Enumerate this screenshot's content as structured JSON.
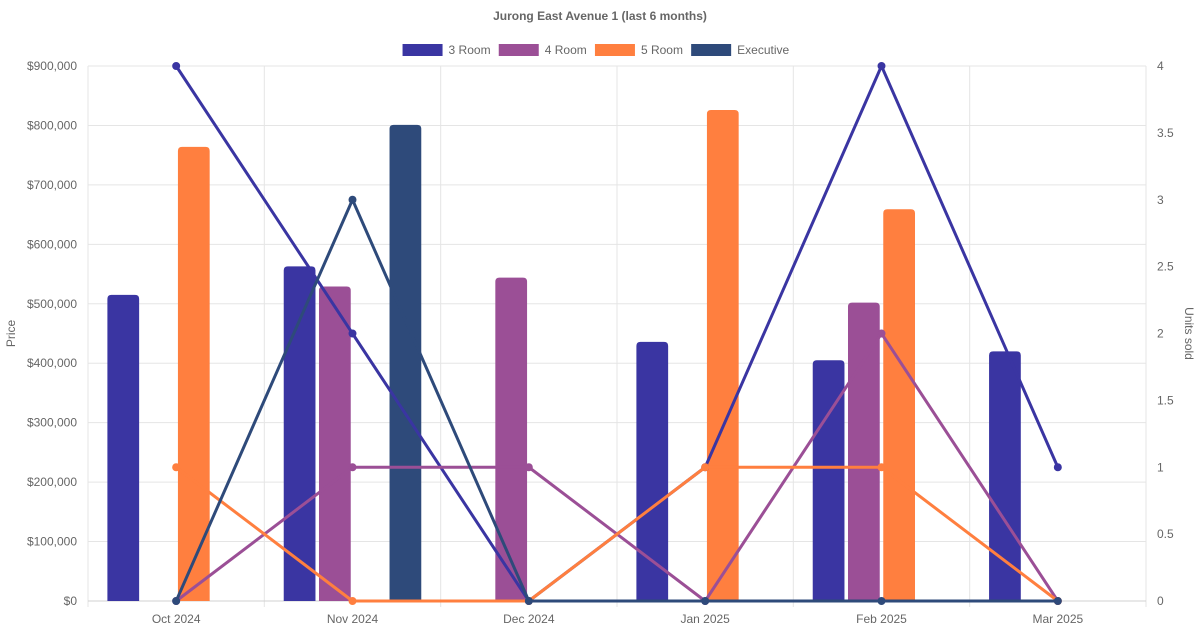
{
  "chart_data": {
    "type": "bar",
    "title": "Jurong East Avenue 1 (last 6 months)",
    "categories": [
      "Oct 2024",
      "Nov 2024",
      "Dec 2024",
      "Jan 2025",
      "Feb 2025",
      "Mar 2025"
    ],
    "ylabel": "Price",
    "y2label": "Units sold",
    "ylim": [
      0,
      900000
    ],
    "y2lim": [
      0,
      4
    ],
    "y_ticks": [
      "$0",
      "$100,000",
      "$200,000",
      "$300,000",
      "$400,000",
      "$500,000",
      "$600,000",
      "$700,000",
      "$800,000",
      "$900,000"
    ],
    "y2_ticks": [
      "0",
      "0.5",
      "1",
      "1.5",
      "2",
      "2.5",
      "3",
      "3.5",
      "4"
    ],
    "grid": true,
    "legend_position": "top",
    "legend": [
      "3 Room",
      "4 Room",
      "5 Room",
      "Executive"
    ],
    "colors": {
      "3 Room": "#3a35a2",
      "4 Room": "#9b4f96",
      "5 Room": "#ff7f3f",
      "Executive": "#2e4a7a"
    },
    "price_series": [
      {
        "name": "3 Room",
        "values": [
          515000,
          563000,
          null,
          436000,
          405000,
          420000
        ]
      },
      {
        "name": "4 Room",
        "values": [
          null,
          529000,
          544000,
          null,
          502000,
          null
        ]
      },
      {
        "name": "5 Room",
        "values": [
          764000,
          null,
          null,
          826000,
          659000,
          null
        ]
      },
      {
        "name": "Executive",
        "values": [
          null,
          801000,
          null,
          null,
          null,
          null
        ]
      }
    ],
    "units_series": [
      {
        "name": "3 Room",
        "values": [
          4,
          2,
          0,
          1,
          4,
          1
        ]
      },
      {
        "name": "4 Room",
        "values": [
          0,
          1,
          1,
          0,
          2,
          0
        ]
      },
      {
        "name": "5 Room",
        "values": [
          1,
          0,
          0,
          1,
          1,
          0
        ]
      },
      {
        "name": "Executive",
        "values": [
          0,
          3,
          0,
          0,
          0,
          0
        ]
      }
    ]
  }
}
